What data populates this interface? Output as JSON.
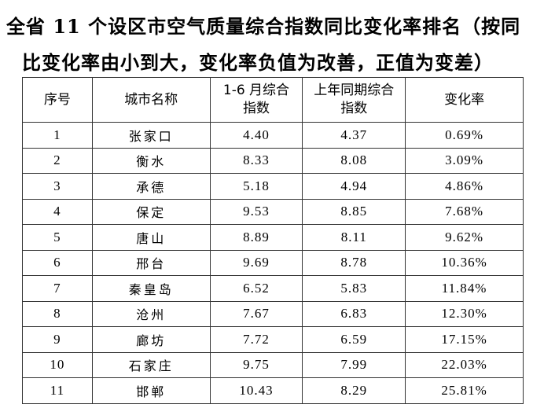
{
  "title_line1": "全省 11 个设区市空气质量综合指数同比变化率排名（按同",
  "title_line2": "比变化率由小到大，变化率负值为改善，正值为变差）",
  "headers": [
    "序号",
    "城市名称",
    "1-6 月综合指数",
    "上年同期综合指数",
    "变化率"
  ],
  "rows": [
    [
      "1",
      "张家口",
      "4.40",
      "4.37",
      "0.69%"
    ],
    [
      "2",
      "衡水",
      "8.33",
      "8.08",
      "3.09%"
    ],
    [
      "3",
      "承德",
      "5.18",
      "4.94",
      "4.86%"
    ],
    [
      "4",
      "保定",
      "9.53",
      "8.85",
      "7.68%"
    ],
    [
      "5",
      "唐山",
      "8.89",
      "8.11",
      "9.62%"
    ],
    [
      "6",
      "邢台",
      "9.69",
      "8.78",
      "10.36%"
    ],
    [
      "7",
      "秦皇岛",
      "6.52",
      "5.83",
      "11.84%"
    ],
    [
      "8",
      "沧州",
      "7.67",
      "6.83",
      "12.30%"
    ],
    [
      "9",
      "廊坊",
      "7.72",
      "6.59",
      "17.15%"
    ],
    [
      "10",
      "石家庄",
      "9.75",
      "7.99",
      "22.03%"
    ],
    [
      "11",
      "邯郸",
      "10.43",
      "8.29",
      "25.81%"
    ]
  ]
}
